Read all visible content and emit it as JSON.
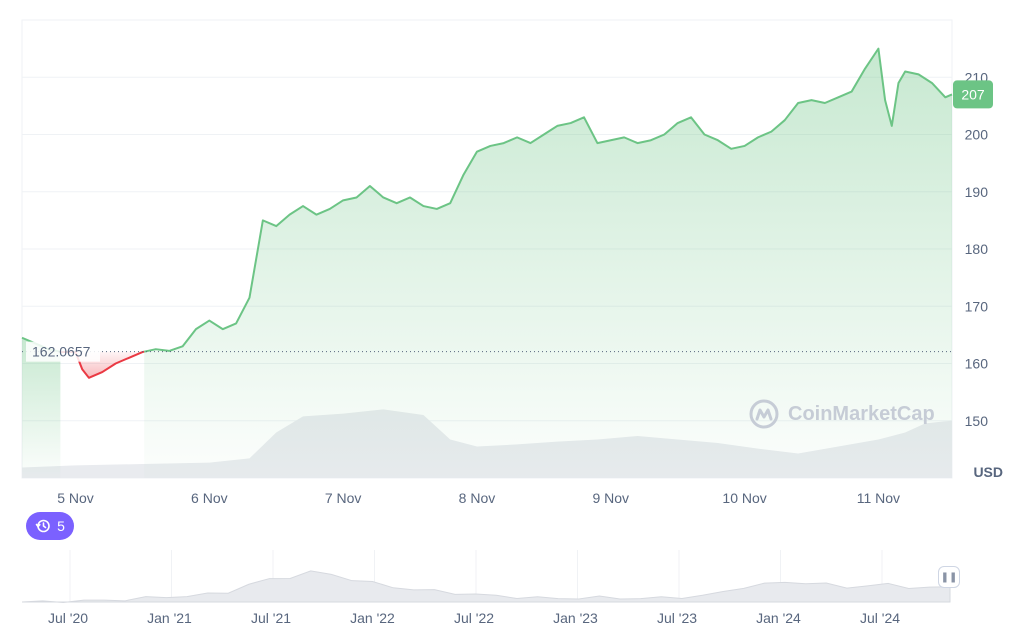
{
  "chart_data": {
    "type": "line",
    "currency": "USD",
    "baseline_price": 162.0657,
    "baseline_label": "162.0657",
    "current_price_label": "207",
    "y_ticks": [
      150,
      160,
      170,
      180,
      190,
      200,
      210
    ],
    "y_tick_labels": [
      "150",
      "160",
      "170",
      "180",
      "190",
      "200",
      "210"
    ],
    "ylim": [
      140,
      220
    ],
    "x_ticks": [
      "5 Nov",
      "6 Nov",
      "7 Nov",
      "8 Nov",
      "9 Nov",
      "10 Nov",
      "11 Nov"
    ],
    "xlim": [
      4.6,
      11.55
    ],
    "series": [
      {
        "x": [
          4.6,
          4.7,
          4.8,
          4.9,
          5.0,
          5.05,
          5.1,
          5.2,
          5.3,
          5.4,
          5.5,
          5.6,
          5.7,
          5.8,
          5.9,
          6.0,
          6.1,
          6.2,
          6.3,
          6.4,
          6.5,
          6.6,
          6.7,
          6.8,
          6.9,
          7.0,
          7.1,
          7.2,
          7.3,
          7.4,
          7.5,
          7.6,
          7.7,
          7.8,
          7.9,
          8.0,
          8.1,
          8.2,
          8.3,
          8.4,
          8.5,
          8.6,
          8.7,
          8.8,
          8.9,
          9.0,
          9.1,
          9.2,
          9.3,
          9.4,
          9.5,
          9.6,
          9.7,
          9.8,
          9.9,
          10.0,
          10.1,
          10.2,
          10.3,
          10.4,
          10.5,
          10.6,
          10.7,
          10.8,
          10.9,
          11.0,
          11.05,
          11.1,
          11.15,
          11.2,
          11.3,
          11.4,
          11.5,
          11.55
        ],
        "values": [
          164.5,
          163.5,
          162.5,
          162,
          162,
          159,
          157.5,
          158.5,
          160,
          161,
          162,
          162.5,
          162.2,
          163,
          166,
          167.5,
          166,
          167,
          171.5,
          185,
          184,
          186,
          187.5,
          186,
          187,
          188.5,
          189,
          191,
          189,
          188,
          189,
          187.5,
          187,
          188,
          193,
          197,
          198,
          198.5,
          199.5,
          198.5,
          200,
          201.5,
          202,
          203,
          198.5,
          199,
          199.5,
          198.5,
          199,
          200,
          202,
          203,
          200,
          199,
          197.5,
          198,
          199.5,
          200.5,
          202.5,
          205.5,
          206,
          205.5,
          206.5,
          207.5,
          211.5,
          215,
          206,
          201.5,
          209,
          211,
          210.5,
          209,
          206.5,
          207
        ]
      }
    ],
    "volume": {
      "x": [
        4.6,
        5.0,
        5.5,
        6.0,
        6.3,
        6.5,
        6.7,
        7.0,
        7.3,
        7.6,
        7.8,
        8.0,
        8.3,
        8.6,
        8.9,
        9.2,
        9.5,
        9.8,
        10.1,
        10.4,
        10.7,
        11.0,
        11.2,
        11.35,
        11.55
      ],
      "values": [
        0.15,
        0.18,
        0.2,
        0.22,
        0.28,
        0.65,
        0.88,
        0.92,
        0.98,
        0.9,
        0.55,
        0.45,
        0.48,
        0.52,
        0.55,
        0.6,
        0.55,
        0.5,
        0.42,
        0.35,
        0.45,
        0.55,
        0.65,
        0.78,
        0.82
      ]
    }
  },
  "navigator": {
    "labels": [
      "Jul '20",
      "Jan '21",
      "Jul '21",
      "Jan '22",
      "Jul '22",
      "Jan '23",
      "Jul '23",
      "Jan '24",
      "Jul '24"
    ],
    "handle_icon": "pause-handle-icon"
  },
  "events_badge": {
    "count": "5",
    "icon": "history-icon"
  },
  "watermark": {
    "text": "CoinMarketCap",
    "icon": "coinmarketcap-logo-icon"
  },
  "colors": {
    "up": "#16c784",
    "line_up": "#6cc485",
    "down": "#ea3943",
    "events": "#7b61ff",
    "price_tag": "#6cc485"
  }
}
